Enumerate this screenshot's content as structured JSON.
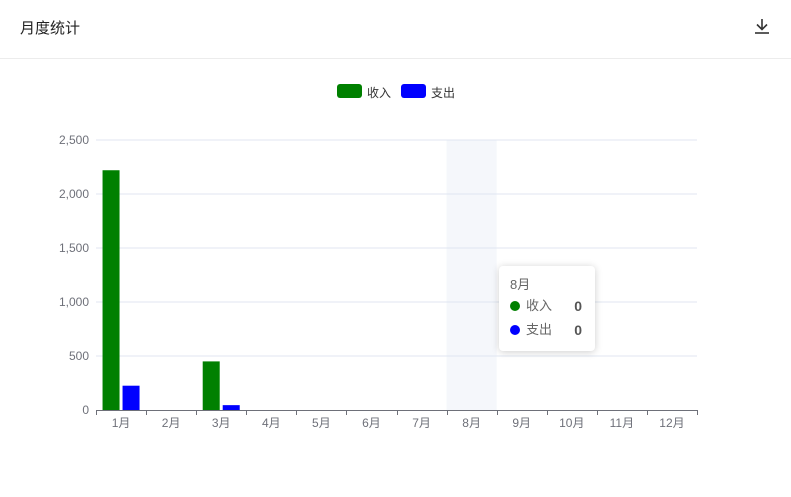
{
  "header": {
    "title": "月度统计",
    "download_icon": "download-icon"
  },
  "colors": {
    "income": "#008000",
    "expense": "#0000ff",
    "highlight": "#f5f7fb"
  },
  "chart_data": {
    "type": "bar",
    "categories": [
      "1月",
      "2月",
      "3月",
      "4月",
      "5月",
      "6月",
      "7月",
      "8月",
      "9月",
      "10月",
      "11月",
      "12月"
    ],
    "series": [
      {
        "name": "收入",
        "values": [
          2220,
          0,
          450,
          0,
          0,
          0,
          0,
          0,
          0,
          0,
          0,
          0
        ]
      },
      {
        "name": "支出",
        "values": [
          225,
          0,
          45,
          0,
          0,
          0,
          0,
          0,
          0,
          0,
          0,
          0
        ]
      }
    ],
    "yticks": [
      "0",
      "500",
      "1,000",
      "1,500",
      "2,000",
      "2,500"
    ],
    "ylim": [
      0,
      2500
    ],
    "legend": "top-center",
    "grid": true,
    "highlighted_category": "8月"
  },
  "tooltip": {
    "title": "8月",
    "rows": [
      {
        "name": "收入",
        "value": "0"
      },
      {
        "name": "支出",
        "value": "0"
      }
    ]
  }
}
